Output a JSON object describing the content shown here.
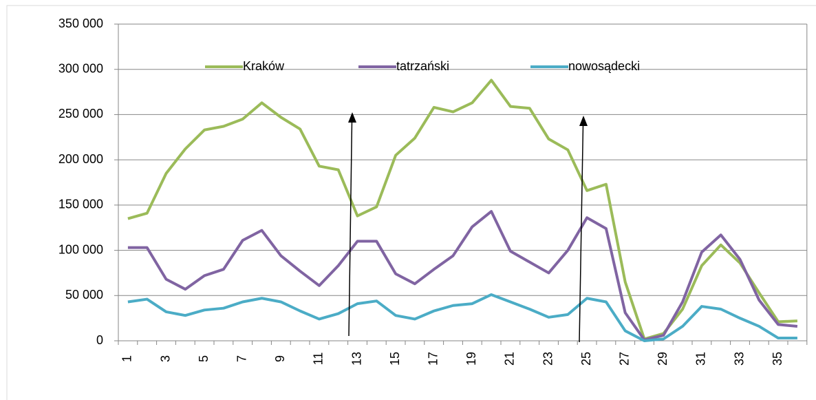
{
  "chart_data": {
    "type": "line",
    "categories": [
      "1",
      null,
      "3",
      null,
      "5",
      null,
      "7",
      null,
      "9",
      null,
      "11",
      null,
      "13",
      null,
      "15",
      null,
      "17",
      null,
      "19",
      null,
      "21",
      null,
      "23",
      null,
      "25",
      null,
      "27",
      null,
      "29",
      null,
      "31",
      null,
      "33",
      null,
      "35",
      null
    ],
    "series": [
      {
        "name": "Kraków",
        "color": "#9bbb59",
        "values": [
          135000,
          141000,
          185000,
          212000,
          233000,
          237000,
          245000,
          263000,
          247000,
          234000,
          193000,
          189000,
          138000,
          148000,
          205000,
          224000,
          258000,
          253000,
          263000,
          288000,
          259000,
          257000,
          223000,
          211000,
          166000,
          173000,
          65000,
          2000,
          8000,
          35000,
          83000,
          106000,
          86000,
          53000,
          21000,
          22000
        ]
      },
      {
        "name": "tatrzański",
        "color": "#8064a2",
        "values": [
          103000,
          103000,
          68000,
          57000,
          72000,
          79000,
          111000,
          122000,
          94000,
          77000,
          61000,
          83000,
          110000,
          110000,
          74000,
          63000,
          79000,
          94000,
          126000,
          143000,
          99000,
          87000,
          75000,
          100000,
          136000,
          124000,
          31000,
          1000,
          6000,
          43000,
          98000,
          117000,
          90000,
          45000,
          18000,
          16000
        ]
      },
      {
        "name": "nowosądecki",
        "color": "#4bacc6",
        "values": [
          43000,
          46000,
          32000,
          28000,
          34000,
          36000,
          43000,
          47000,
          43000,
          33000,
          24000,
          30000,
          41000,
          44000,
          28000,
          24000,
          33000,
          39000,
          41000,
          51000,
          43000,
          35000,
          26000,
          29000,
          47000,
          43000,
          11000,
          0,
          2000,
          16000,
          38000,
          35000,
          25000,
          16000,
          3000,
          3000
        ]
      }
    ],
    "ylim": [
      0,
      350000
    ],
    "yticks": [
      {
        "value": 0,
        "label": "0"
      },
      {
        "value": 50000,
        "label": "50 000"
      },
      {
        "value": 100000,
        "label": "100 000"
      },
      {
        "value": 150000,
        "label": "150 000"
      },
      {
        "value": 200000,
        "label": "200 000"
      },
      {
        "value": 250000,
        "label": "250 000"
      },
      {
        "value": 300000,
        "label": "300 000"
      },
      {
        "value": 350000,
        "label": "350 000"
      }
    ],
    "grid": true,
    "legend": "top"
  }
}
